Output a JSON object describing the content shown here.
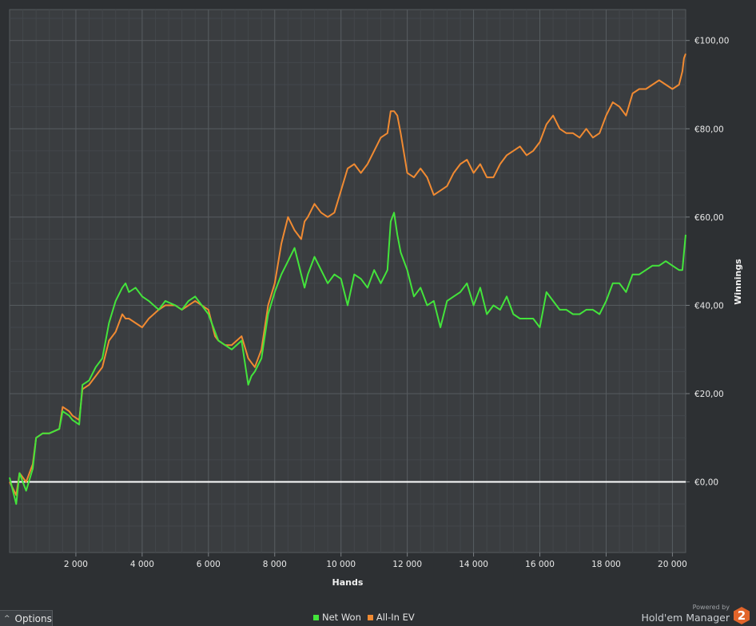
{
  "chart_data": {
    "type": "line",
    "xlabel": "Hands",
    "ylabel": "Winnings",
    "xlim": [
      0,
      20400
    ],
    "ylim": [
      -16,
      107
    ],
    "x_ticks": [
      {
        "value": 2000,
        "label": "2 000"
      },
      {
        "value": 4000,
        "label": "4 000"
      },
      {
        "value": 6000,
        "label": "6 000"
      },
      {
        "value": 8000,
        "label": "8 000"
      },
      {
        "value": 10000,
        "label": "10 000"
      },
      {
        "value": 12000,
        "label": "12 000"
      },
      {
        "value": 14000,
        "label": "14 000"
      },
      {
        "value": 16000,
        "label": "16 000"
      },
      {
        "value": 18000,
        "label": "18 000"
      },
      {
        "value": 20000,
        "label": "20 000"
      }
    ],
    "y_ticks": [
      {
        "value": 0,
        "label": "€0,00"
      },
      {
        "value": 20,
        "label": "€20,00"
      },
      {
        "value": 40,
        "label": "€40,00"
      },
      {
        "value": 60,
        "label": "€60,00"
      },
      {
        "value": 80,
        "label": "€80,00"
      },
      {
        "value": 100,
        "label": "€100,00"
      }
    ],
    "zero_line": true,
    "grid": true,
    "legend_position": "bottom-center",
    "series": [
      {
        "name": "Net Won",
        "color": "#43e43b",
        "x": [
          0,
          200,
          300,
          500,
          700,
          800,
          1000,
          1200,
          1500,
          1600,
          1800,
          1900,
          2100,
          2200,
          2400,
          2600,
          2800,
          3000,
          3200,
          3400,
          3500,
          3600,
          3800,
          4000,
          4200,
          4500,
          4700,
          5000,
          5200,
          5400,
          5600,
          5800,
          6000,
          6200,
          6300,
          6500,
          6700,
          7000,
          7200,
          7300,
          7400,
          7600,
          7800,
          8000,
          8200,
          8400,
          8600,
          8700,
          8800,
          8900,
          9000,
          9200,
          9400,
          9600,
          9800,
          10000,
          10200,
          10400,
          10600,
          10800,
          11000,
          11200,
          11400,
          11500,
          11600,
          11700,
          11800,
          12000,
          12200,
          12400,
          12600,
          12800,
          13000,
          13200,
          13400,
          13600,
          13800,
          14000,
          14200,
          14400,
          14600,
          14800,
          15000,
          15200,
          15400,
          15600,
          15800,
          16000,
          16200,
          16400,
          16600,
          16800,
          17000,
          17200,
          17400,
          17600,
          17800,
          18000,
          18200,
          18400,
          18600,
          18800,
          19000,
          19200,
          19400,
          19600,
          19800,
          20000,
          20200,
          20300,
          20350,
          20400
        ],
        "values": [
          1,
          -5,
          2,
          -2,
          3,
          10,
          11,
          11,
          12,
          16,
          15,
          14,
          13,
          22,
          23,
          26,
          28,
          36,
          41,
          44,
          45,
          43,
          44,
          42,
          41,
          39,
          41,
          40,
          39,
          41,
          42,
          40,
          38,
          34,
          32,
          31,
          30,
          32,
          22,
          24,
          25,
          28,
          38,
          43,
          47,
          50,
          53,
          50,
          47,
          44,
          47,
          51,
          48,
          45,
          47,
          46,
          40,
          47,
          46,
          44,
          48,
          45,
          48,
          59,
          61,
          56,
          52,
          48,
          42,
          44,
          40,
          41,
          35,
          41,
          42,
          43,
          45,
          40,
          44,
          38,
          40,
          39,
          42,
          38,
          37,
          37,
          37,
          35,
          43,
          41,
          39,
          39,
          38,
          38,
          39,
          39,
          38,
          41,
          45,
          45,
          43,
          47,
          47,
          48,
          49,
          49,
          50,
          49,
          48,
          48,
          52,
          56
        ]
      },
      {
        "name": "All-In EV",
        "color": "#f08a32",
        "x": [
          0,
          200,
          300,
          500,
          700,
          800,
          1000,
          1200,
          1500,
          1600,
          1800,
          1900,
          2100,
          2200,
          2400,
          2600,
          2800,
          3000,
          3200,
          3400,
          3500,
          3600,
          3800,
          4000,
          4200,
          4500,
          4700,
          5000,
          5200,
          5400,
          5600,
          5800,
          6000,
          6200,
          6300,
          6500,
          6700,
          7000,
          7200,
          7300,
          7400,
          7600,
          7800,
          8000,
          8200,
          8400,
          8600,
          8700,
          8800,
          8900,
          9000,
          9200,
          9400,
          9600,
          9800,
          10000,
          10200,
          10400,
          10600,
          10800,
          11000,
          11200,
          11400,
          11500,
          11600,
          11700,
          11800,
          12000,
          12200,
          12400,
          12600,
          12800,
          13000,
          13200,
          13400,
          13600,
          13800,
          14000,
          14200,
          14400,
          14600,
          14800,
          15000,
          15200,
          15400,
          15600,
          15800,
          16000,
          16200,
          16400,
          16600,
          16800,
          17000,
          17200,
          17400,
          17600,
          17800,
          18000,
          18200,
          18400,
          18600,
          18800,
          19000,
          19200,
          19400,
          19600,
          19800,
          20000,
          20200,
          20300,
          20350,
          20400
        ],
        "values": [
          0,
          -3,
          2,
          0,
          4,
          10,
          11,
          11,
          12,
          17,
          16,
          15,
          14,
          21,
          22,
          24,
          26,
          32,
          34,
          38,
          37,
          37,
          36,
          35,
          37,
          39,
          40,
          40,
          39,
          40,
          41,
          40,
          39,
          33,
          32,
          31,
          31,
          33,
          28,
          27,
          26,
          30,
          40,
          45,
          54,
          60,
          57,
          56,
          55,
          59,
          60,
          63,
          61,
          60,
          61,
          66,
          71,
          72,
          70,
          72,
          75,
          78,
          79,
          84,
          84,
          83,
          79,
          70,
          69,
          71,
          69,
          65,
          66,
          67,
          70,
          72,
          73,
          70,
          72,
          69,
          69,
          72,
          74,
          75,
          76,
          74,
          75,
          77,
          81,
          83,
          80,
          79,
          79,
          78,
          80,
          78,
          79,
          83,
          86,
          85,
          83,
          88,
          89,
          89,
          90,
          91,
          90,
          89,
          90,
          93,
          96,
          97
        ]
      }
    ]
  },
  "ui": {
    "options_label": "Options",
    "powered_by": "Powered by",
    "product_name": "Hold'em Manager",
    "logo_char": "2"
  }
}
